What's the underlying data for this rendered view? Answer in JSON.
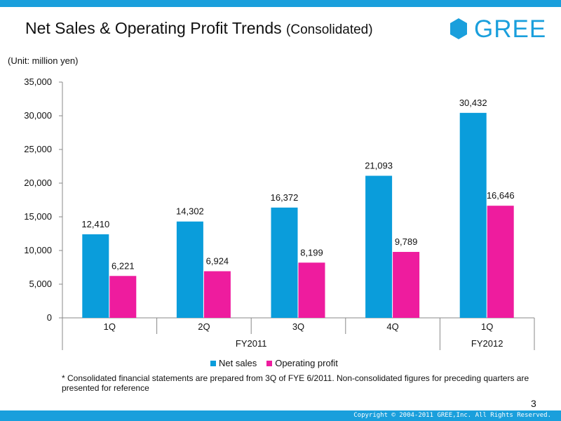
{
  "header": {
    "title": "Net Sales & Operating Profit Trends",
    "subtitle": "(Consolidated)",
    "logo_text": "GREE"
  },
  "unit_label": "(Unit: million yen)",
  "chart_data": {
    "type": "bar",
    "categories": [
      "1Q",
      "2Q",
      "3Q",
      "4Q",
      "1Q"
    ],
    "groups": [
      {
        "label": "FY2011",
        "span": 4
      },
      {
        "label": "FY2012",
        "span": 1
      }
    ],
    "series": [
      {
        "name": "Net sales",
        "values": [
          12410,
          14302,
          16372,
          21093,
          30432
        ],
        "color": "#0a9ddb"
      },
      {
        "name": "Operating profit",
        "values": [
          6221,
          6924,
          8199,
          9789,
          16646
        ],
        "color": "#ee1c9e"
      }
    ],
    "value_labels": [
      [
        "12,410",
        "14,302",
        "16,372",
        "21,093",
        "30,432"
      ],
      [
        "6,221",
        "6,924",
        "8,199",
        "9,789",
        "16,646"
      ]
    ],
    "yticks": [
      "0",
      "5,000",
      "10,000",
      "15,000",
      "20,000",
      "25,000",
      "30,000",
      "35,000"
    ],
    "ylim": [
      0,
      35000
    ],
    "title": "Net Sales & Operating Profit Trends (Consolidated)",
    "xlabel": "",
    "ylabel": "million yen",
    "legend_position": "bottom"
  },
  "legend": [
    {
      "label": "Net sales",
      "color": "#0a9ddb"
    },
    {
      "label": "Operating profit",
      "color": "#ee1c9e"
    }
  ],
  "footnote": "* Consolidated financial statements are prepared from 3Q of FYE 6/2011. Non-consolidated figures for preceding quarters are presented for reference",
  "page_number": "3",
  "copyright": "Copyright © 2004-2011 GREE,Inc. All Rights Reserved.",
  "colors": {
    "brand": "#1a9fdc"
  }
}
